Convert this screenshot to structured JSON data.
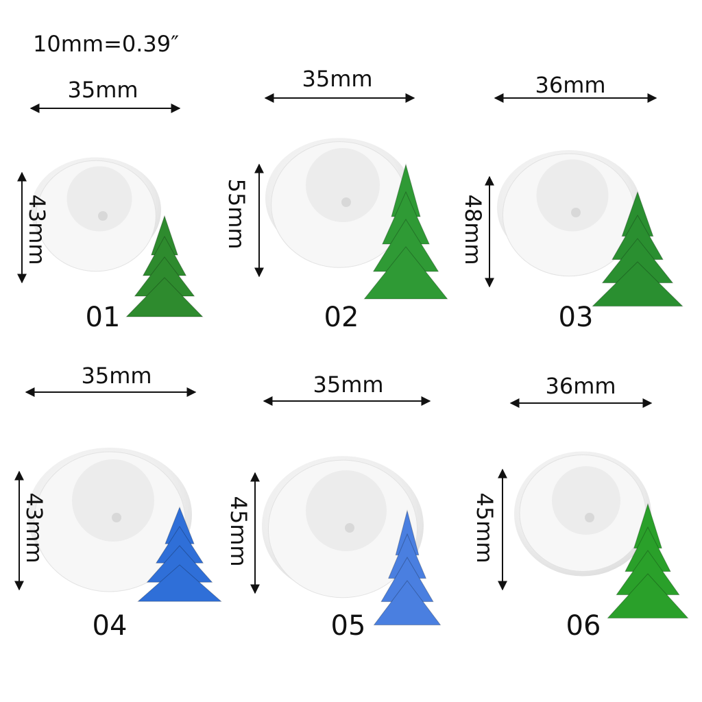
{
  "header": {
    "note": "10mm=0.39″"
  },
  "items": [
    {
      "label": "01",
      "width": "35mm",
      "height": "43mm"
    },
    {
      "label": "02",
      "width": "35mm",
      "height": "55mm"
    },
    {
      "label": "03",
      "width": "36mm",
      "height": "48mm"
    },
    {
      "label": "04",
      "width": "35mm",
      "height": "43mm"
    },
    {
      "label": "05",
      "width": "35mm",
      "height": "45mm"
    },
    {
      "label": "06",
      "width": "36mm",
      "height": "45mm"
    }
  ]
}
